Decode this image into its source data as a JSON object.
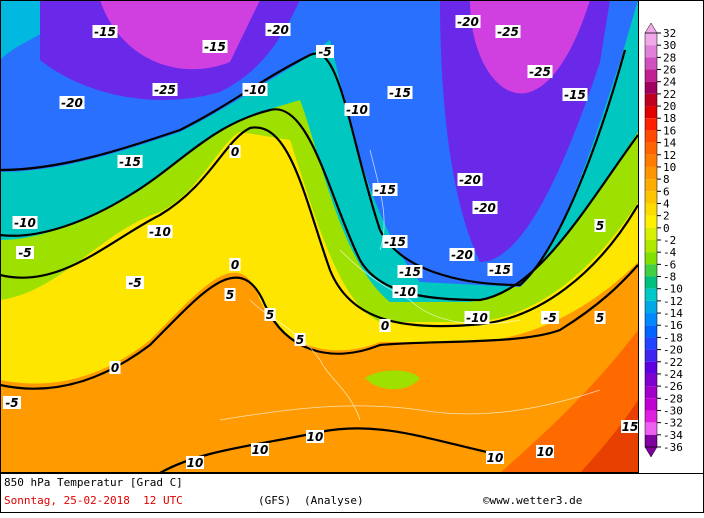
{
  "map": {
    "contour_labels": [
      "-15",
      "-15",
      "-20",
      "-25",
      "-20",
      "-25",
      "-15",
      "-20",
      "-25",
      "-10",
      "-10",
      "-15",
      "-5",
      "-15",
      "-10",
      "-5",
      "-5",
      "-15",
      "-15",
      "-20",
      "-20",
      "-20",
      "-15",
      "-15",
      "-10",
      "-10",
      "-5",
      "0",
      "0",
      "0",
      "0",
      "5",
      "5",
      "5",
      "-5",
      "10",
      "10",
      "10",
      "10",
      "10",
      "5",
      "5",
      "15",
      "-10"
    ]
  },
  "colorbar": {
    "ticks": [
      32,
      30,
      28,
      26,
      24,
      22,
      20,
      18,
      16,
      14,
      12,
      10,
      8,
      6,
      4,
      2,
      0,
      -2,
      -4,
      -6,
      -8,
      -10,
      -12,
      -14,
      -16,
      -18,
      -20,
      -22,
      -24,
      -26,
      -28,
      -30,
      -32,
      -34,
      -36
    ],
    "colors": [
      "#f0a8e8",
      "#e080d8",
      "#d050c0",
      "#c02090",
      "#a00060",
      "#c00020",
      "#e00000",
      "#ff2000",
      "#ff4a00",
      "#ff6400",
      "#ff7c00",
      "#ff9600",
      "#ffac00",
      "#ffc400",
      "#ffdc00",
      "#fff000",
      "#d8f000",
      "#b0e800",
      "#80e000",
      "#40d040",
      "#00c080",
      "#00c8c8",
      "#00a8e8",
      "#0088ff",
      "#0064ff",
      "#2044ff",
      "#4024f0",
      "#6000e0",
      "#8000d0",
      "#a000c8",
      "#c000d0",
      "#e020e0",
      "#f060f0",
      "#8000a0"
    ]
  },
  "footer": {
    "title": "850 hPa Temperatur [Grad C]",
    "date": "Sonntag, 25-02-2018  12 UTC",
    "model": "(GFS)",
    "run": "(Analyse)",
    "credit": "©www.wetter3.de"
  }
}
